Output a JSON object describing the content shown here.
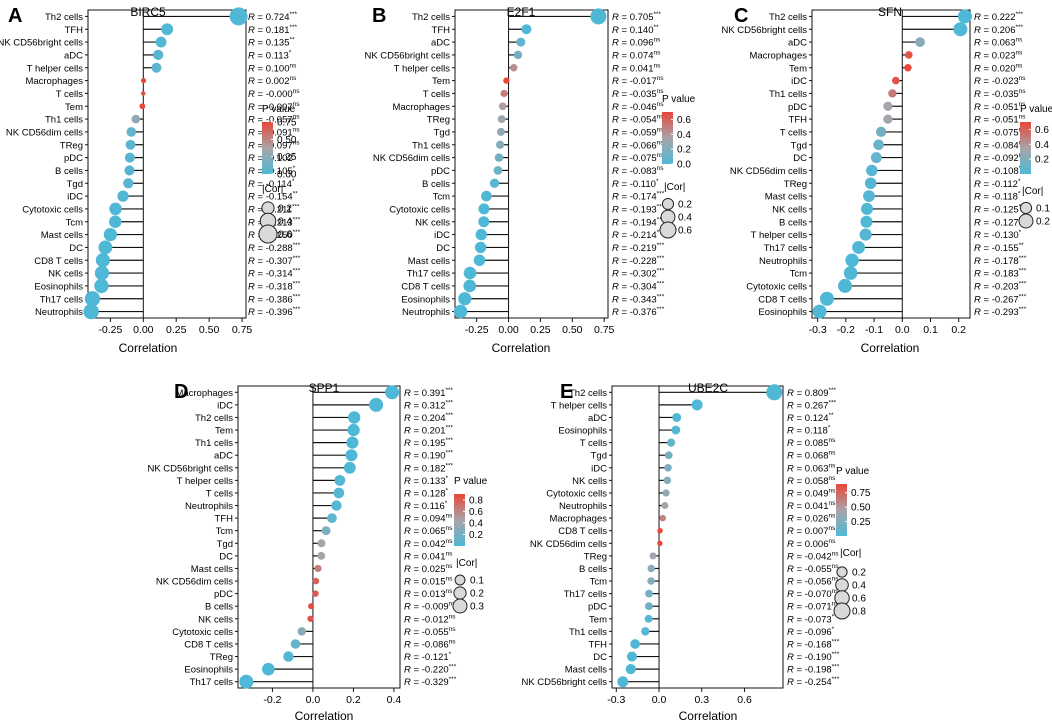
{
  "figure": {
    "xlabel": "Correlation",
    "pvalue_title": "P value",
    "cor_title": "|Cor|",
    "r_prefix": "R = ",
    "colors": {
      "low_p": "#e8473a",
      "mid_p": "#a8a4a8",
      "high_p": "#4fb8d6",
      "stem": "#111111",
      "axis": "#111111"
    }
  },
  "chart_data": [
    {
      "type": "lollipop",
      "letter": "A",
      "title": "BIRC5",
      "xlabel": "Correlation",
      "xlim": [
        -0.42,
        0.78
      ],
      "xticks": [
        -0.25,
        0.0,
        0.25,
        0.5,
        0.75
      ],
      "xtick_labels": [
        "-0.25",
        "0.00",
        "0.25",
        "0.50",
        "0.75"
      ],
      "categories": [
        "Th2 cells",
        "TFH",
        "NK CD56bright cells",
        "aDC",
        "T helper cells",
        "Macrophages",
        "T cells",
        "Tem",
        "Th1 cells",
        "NK CD56dim cells",
        "TReg",
        "pDC",
        "B cells",
        "Tgd",
        "iDC",
        "Cytotoxic cells",
        "Tcm",
        "Mast cells",
        "DC",
        "CD8 T cells",
        "NK cells",
        "Eosinophils",
        "Th17 cells",
        "Neutrophils"
      ],
      "values": [
        0.724,
        0.181,
        0.135,
        0.113,
        0.1,
        0.002,
        -0.0,
        -0.007,
        -0.057,
        -0.091,
        -0.097,
        -0.102,
        -0.105,
        -0.114,
        -0.154,
        -0.211,
        -0.213,
        -0.25,
        -0.288,
        -0.307,
        -0.314,
        -0.318,
        -0.386,
        -0.396
      ],
      "r_labels": [
        "0.724",
        "0.181",
        "0.135",
        "0.113",
        "0.100",
        "0.002",
        "-0.000",
        "-0.007",
        "-0.057",
        "-0.091",
        "-0.097",
        "-0.102",
        "-0.105",
        "-0.114",
        "-0.154",
        "-0.211",
        "-0.213",
        "-0.250",
        "-0.288",
        "-0.307",
        "-0.314",
        "-0.318",
        "-0.386",
        "-0.396"
      ],
      "sig": [
        "***",
        "***",
        "**",
        "*",
        "ns",
        "ns",
        "ns",
        "ns",
        "ns",
        "ns",
        "ns",
        "*",
        "*",
        "*",
        "**",
        "***",
        "***",
        "***",
        "***",
        "***",
        "***",
        "***",
        "***",
        "***"
      ],
      "pvalue_legend": {
        "ticks": [
          "0.75",
          "0.50",
          "0.25",
          "0.00"
        ],
        "max": 0.75
      },
      "size_legend": {
        "labels": [
          "0.2",
          "0.4",
          "0.6"
        ],
        "values": [
          0.2,
          0.4,
          0.6
        ]
      }
    },
    {
      "type": "lollipop",
      "letter": "B",
      "title": "E2F1",
      "xlabel": "Correlation",
      "xlim": [
        -0.42,
        0.78
      ],
      "xticks": [
        -0.25,
        0.0,
        0.25,
        0.5,
        0.75
      ],
      "xtick_labels": [
        "-0.25",
        "0.00",
        "0.25",
        "0.50",
        "0.75"
      ],
      "categories": [
        "Th2 cells",
        "TFH",
        "aDC",
        "NK CD56bright cells",
        "T helper cells",
        "Tem",
        "T cells",
        "Macrophages",
        "TReg",
        "Tgd",
        "Th1 cells",
        "NK CD56dim cells",
        "pDC",
        "B cells",
        "Tcm",
        "Cytotoxic cells",
        "NK cells",
        "iDC",
        "DC",
        "Mast cells",
        "Th17 cells",
        "CD8 T cells",
        "Eosinophils",
        "Neutrophils"
      ],
      "values": [
        0.705,
        0.14,
        0.096,
        0.074,
        0.041,
        -0.017,
        -0.035,
        -0.046,
        -0.054,
        -0.059,
        -0.066,
        -0.075,
        -0.083,
        -0.11,
        -0.174,
        -0.193,
        -0.194,
        -0.214,
        -0.219,
        -0.228,
        -0.302,
        -0.304,
        -0.343,
        -0.376
      ],
      "r_labels": [
        "0.705",
        "0.140",
        "0.096",
        "0.074",
        "0.041",
        "-0.017",
        "-0.035",
        "-0.046",
        "-0.054",
        "-0.059",
        "-0.066",
        "-0.075",
        "-0.083",
        "-0.110",
        "-0.174",
        "-0.193",
        "-0.194",
        "-0.214",
        "-0.219",
        "-0.228",
        "-0.302",
        "-0.304",
        "-0.343",
        "-0.376"
      ],
      "sig": [
        "***",
        "**",
        "ns",
        "ns",
        "ns",
        "ns",
        "ns",
        "ns",
        "ns",
        "ns",
        "ns",
        "ns",
        "ns",
        "*",
        "***",
        "***",
        "***",
        "***",
        "***",
        "***",
        "***",
        "***",
        "***",
        "***"
      ],
      "pvalue_legend": {
        "ticks": [
          "0.6",
          "0.4",
          "0.2",
          "0.0"
        ],
        "max": 0.7
      },
      "size_legend": {
        "labels": [
          "0.2",
          "0.4",
          "0.6"
        ],
        "values": [
          0.2,
          0.4,
          0.6
        ]
      }
    },
    {
      "type": "lollipop",
      "letter": "C",
      "title": "SFN",
      "xlabel": "Correlation",
      "xlim": [
        -0.32,
        0.24
      ],
      "xticks": [
        -0.3,
        -0.2,
        -0.1,
        0.0,
        0.1,
        0.2
      ],
      "xtick_labels": [
        "-0.3",
        "-0.2",
        "-0.1",
        "0.0",
        "0.1",
        "0.2"
      ],
      "categories": [
        "Th2 cells",
        "NK CD56bright cells",
        "aDC",
        "Macrophages",
        "Tem",
        "iDC",
        "Th1 cells",
        "pDC",
        "TFH",
        "T cells",
        "Tgd",
        "DC",
        "NK CD56dim cells",
        "TReg",
        "Mast cells",
        "NK cells",
        "B cells",
        "T helper cells",
        "Th17 cells",
        "Neutrophils",
        "Tcm",
        "Cytotoxic cells",
        "CD8 T cells",
        "Eosinophils"
      ],
      "values": [
        0.222,
        0.206,
        0.063,
        0.023,
        0.02,
        -0.023,
        -0.035,
        -0.051,
        -0.051,
        -0.075,
        -0.084,
        -0.092,
        -0.108,
        -0.112,
        -0.118,
        -0.125,
        -0.127,
        -0.13,
        -0.155,
        -0.178,
        -0.183,
        -0.203,
        -0.267,
        -0.293
      ],
      "r_labels": [
        "0.222",
        "0.206",
        "0.063",
        "0.023",
        "0.020",
        "-0.023",
        "-0.035",
        "-0.051",
        "-0.051",
        "-0.075",
        "-0.084",
        "-0.092",
        "-0.108",
        "-0.112",
        "-0.118",
        "-0.125",
        "-0.127",
        "-0.130",
        "-0.155",
        "-0.178",
        "-0.183",
        "-0.203",
        "-0.267",
        "-0.293"
      ],
      "sig": [
        "***",
        "***",
        "ns",
        "ns",
        "ns",
        "ns",
        "ns",
        "ns",
        "ns",
        "ns",
        "ns",
        "ns",
        "*",
        "*",
        "*",
        "**",
        "**",
        "*",
        "**",
        "***",
        "***",
        "***",
        "***",
        "***"
      ],
      "pvalue_legend": {
        "ticks": [
          "0.6",
          "0.4",
          "0.2"
        ],
        "max": 0.7
      },
      "size_legend": {
        "labels": [
          "0.1",
          "0.2"
        ],
        "values": [
          0.1,
          0.2
        ]
      }
    },
    {
      "type": "lollipop",
      "letter": "D",
      "title": "SPP1",
      "xlabel": "Correlation",
      "xlim": [
        -0.37,
        0.43
      ],
      "xticks": [
        -0.2,
        0.0,
        0.2,
        0.4
      ],
      "xtick_labels": [
        "-0.2",
        "0.0",
        "0.2",
        "0.4"
      ],
      "categories": [
        "Macrophages",
        "iDC",
        "Th2 cells",
        "Tem",
        "Th1 cells",
        "aDC",
        "NK CD56bright cells",
        "T helper cells",
        "T cells",
        "Neutrophils",
        "TFH",
        "Tcm",
        "Tgd",
        "DC",
        "Mast cells",
        "NK CD56dim cells",
        "pDC",
        "B cells",
        "NK cells",
        "Cytotoxic cells",
        "CD8 T cells",
        "TReg",
        "Eosinophils",
        "Th17 cells"
      ],
      "values": [
        0.391,
        0.312,
        0.204,
        0.201,
        0.195,
        0.19,
        0.182,
        0.133,
        0.128,
        0.116,
        0.094,
        0.065,
        0.042,
        0.041,
        0.025,
        0.015,
        0.013,
        -0.009,
        -0.012,
        -0.055,
        -0.086,
        -0.121,
        -0.22,
        -0.329
      ],
      "r_labels": [
        "0.391",
        "0.312",
        "0.204",
        "0.201",
        "0.195",
        "0.190",
        "0.182",
        "0.133",
        "0.128",
        "0.116",
        "0.094",
        "0.065",
        "0.042",
        "0.041",
        "0.025",
        "0.015",
        "0.013",
        "-0.009",
        "-0.012",
        "-0.055",
        "-0.086",
        "-0.121",
        "-0.220",
        "-0.329"
      ],
      "sig": [
        "***",
        "***",
        "***",
        "***",
        "***",
        "***",
        "***",
        "*",
        "*",
        "*",
        "ns",
        "ns",
        "ns",
        "ns",
        "ns",
        "ns",
        "ns",
        "ns",
        "ns",
        "ns",
        "ns",
        "*",
        "***",
        "***"
      ],
      "pvalue_legend": {
        "ticks": [
          "0.8",
          "0.6",
          "0.4",
          "0.2"
        ],
        "max": 0.9
      },
      "size_legend": {
        "labels": [
          "0.1",
          "0.2",
          "0.3"
        ],
        "values": [
          0.1,
          0.2,
          0.3
        ]
      }
    },
    {
      "type": "lollipop",
      "letter": "E",
      "title": "UBE2C",
      "xlabel": "Correlation",
      "xlim": [
        -0.33,
        0.87
      ],
      "xticks": [
        -0.3,
        0.0,
        0.3,
        0.6
      ],
      "xtick_labels": [
        "-0.3",
        "0.0",
        "0.3",
        "0.6"
      ],
      "categories": [
        "Th2 cells",
        "T helper cells",
        "aDC",
        "Eosinophils",
        "T cells",
        "Tgd",
        "iDC",
        "NK cells",
        "Cytotoxic cells",
        "Neutrophils",
        "Macrophages",
        "CD8 T cells",
        "NK CD56dim cells",
        "TReg",
        "B cells",
        "Tcm",
        "Th17 cells",
        "pDC",
        "Tem",
        "Th1 cells",
        "TFH",
        "DC",
        "Mast cells",
        "NK CD56bright cells"
      ],
      "values": [
        0.809,
        0.267,
        0.124,
        0.118,
        0.085,
        0.068,
        0.063,
        0.058,
        0.049,
        0.041,
        0.026,
        0.007,
        0.006,
        -0.042,
        -0.055,
        -0.056,
        -0.07,
        -0.071,
        -0.073,
        -0.096,
        -0.168,
        -0.19,
        -0.198,
        -0.254
      ],
      "r_labels": [
        "0.809",
        "0.267",
        "0.124",
        "0.118",
        "0.085",
        "0.068",
        "0.063",
        "0.058",
        "0.049",
        "0.041",
        "0.026",
        "0.007",
        "0.006",
        "-0.042",
        "-0.055",
        "-0.056",
        "-0.070",
        "-0.071",
        "-0.073",
        "-0.096",
        "-0.168",
        "-0.190",
        "-0.198",
        "-0.254"
      ],
      "sig": [
        "***",
        "***",
        "**",
        "*",
        "ns",
        "ns",
        "ns",
        "ns",
        "ns",
        "ns",
        "ns",
        "ns",
        "ns",
        "ns",
        "ns",
        "ns",
        "ns",
        "ns",
        "*",
        "*",
        "***",
        "***",
        "***",
        "***"
      ],
      "pvalue_legend": {
        "ticks": [
          "0.75",
          "0.50",
          "0.25"
        ],
        "max": 0.9
      },
      "size_legend": {
        "labels": [
          "0.2",
          "0.4",
          "0.6",
          "0.8"
        ],
        "values": [
          0.2,
          0.4,
          0.6,
          0.8
        ]
      }
    }
  ]
}
